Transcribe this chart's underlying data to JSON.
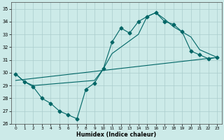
{
  "xlabel": "Humidex (Indice chaleur)",
  "background_color": "#cceae8",
  "grid_color": "#aacccc",
  "line_color": "#006666",
  "xlim": [
    -0.5,
    23.5
  ],
  "ylim": [
    26,
    35.5
  ],
  "yticks": [
    26,
    27,
    28,
    29,
    30,
    31,
    32,
    33,
    34,
    35
  ],
  "xticks": [
    0,
    1,
    2,
    3,
    4,
    5,
    6,
    7,
    8,
    9,
    10,
    11,
    12,
    13,
    14,
    15,
    16,
    17,
    18,
    19,
    20,
    21,
    22,
    23
  ],
  "series1_x": [
    0,
    1,
    2,
    3,
    4,
    5,
    6,
    7,
    8,
    9,
    10,
    11,
    12,
    13,
    14,
    15,
    16,
    17,
    18,
    19,
    20,
    21,
    22,
    23
  ],
  "series1_y": [
    29.9,
    29.3,
    28.9,
    28.0,
    27.6,
    27.0,
    26.7,
    26.4,
    28.7,
    29.2,
    30.3,
    32.4,
    33.5,
    33.1,
    34.0,
    34.4,
    34.7,
    34.0,
    33.8,
    33.2,
    31.7,
    31.4,
    31.1,
    31.2
  ],
  "series2_x": [
    0,
    1,
    2,
    9,
    10,
    11,
    13,
    14,
    15,
    16,
    17,
    18,
    19,
    20,
    21,
    23
  ],
  "series2_y": [
    29.9,
    29.3,
    29.0,
    29.4,
    30.3,
    31.5,
    32.5,
    33.0,
    34.4,
    34.7,
    34.2,
    33.6,
    33.2,
    32.8,
    31.8,
    31.2
  ],
  "series3_x": [
    0,
    23
  ],
  "series3_y": [
    29.4,
    31.2
  ],
  "markersize": 2.5
}
